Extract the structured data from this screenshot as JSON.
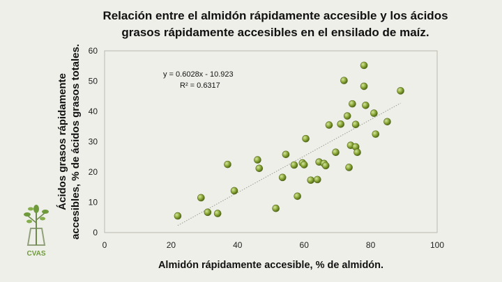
{
  "slide": {
    "title_line1": "Relación entre el almidón rápidamente accesible y los ácidos",
    "title_line2": "grasos rápidamente accesibles en el ensilado de maíz.",
    "logo_text": "CVAS"
  },
  "chart_data": {
    "type": "scatter",
    "title": "Relación entre el almidón rápidamente accesible y los ácidos grasos rápidamente accesibles en el ensilado de maíz.",
    "xlabel": "Almidón rápidamente accesible, % de almidón.",
    "ylabel_line1": "Ácidos grasos rápidamente",
    "ylabel_line2": "accesibles, % de ácidos grasos totales.",
    "xlim": [
      0,
      100
    ],
    "ylim": [
      0,
      60
    ],
    "xticks": [
      0,
      20,
      40,
      60,
      80,
      100
    ],
    "yticks": [
      0,
      10,
      20,
      30,
      40,
      50,
      60
    ],
    "grid": false,
    "marker_color": "#8faa3a",
    "trendline": {
      "equation": "y = 0.6028x - 10.923",
      "r2": "R² = 0.6317",
      "slope": 0.6028,
      "intercept": -10.923,
      "x_range": [
        22,
        89
      ]
    },
    "points": [
      [
        22,
        5.5
      ],
      [
        29,
        11.5
      ],
      [
        31,
        6.7
      ],
      [
        34,
        6.3
      ],
      [
        37,
        22.5
      ],
      [
        39,
        13.8
      ],
      [
        46,
        24
      ],
      [
        46.5,
        21.2
      ],
      [
        51.5,
        8
      ],
      [
        53.5,
        18.2
      ],
      [
        54.5,
        25.8
      ],
      [
        57,
        22.3
      ],
      [
        58,
        12
      ],
      [
        59.5,
        23
      ],
      [
        60,
        22.4
      ],
      [
        60.5,
        31
      ],
      [
        62,
        17.3
      ],
      [
        64,
        17.5
      ],
      [
        64.5,
        23.3
      ],
      [
        66,
        22.8
      ],
      [
        66.5,
        22.1
      ],
      [
        67.5,
        35.5
      ],
      [
        69.5,
        26.5
      ],
      [
        71,
        35.8
      ],
      [
        72,
        50.2
      ],
      [
        73,
        38.5
      ],
      [
        73.5,
        21.5
      ],
      [
        74,
        28.8
      ],
      [
        74.5,
        42.5
      ],
      [
        75.5,
        35.7
      ],
      [
        75.5,
        28.3
      ],
      [
        76,
        26.5
      ],
      [
        78,
        55.2
      ],
      [
        78,
        48.3
      ],
      [
        78.5,
        42
      ],
      [
        81,
        39.4
      ],
      [
        81.5,
        32.5
      ],
      [
        85,
        36.6
      ],
      [
        89,
        46.8
      ]
    ]
  }
}
